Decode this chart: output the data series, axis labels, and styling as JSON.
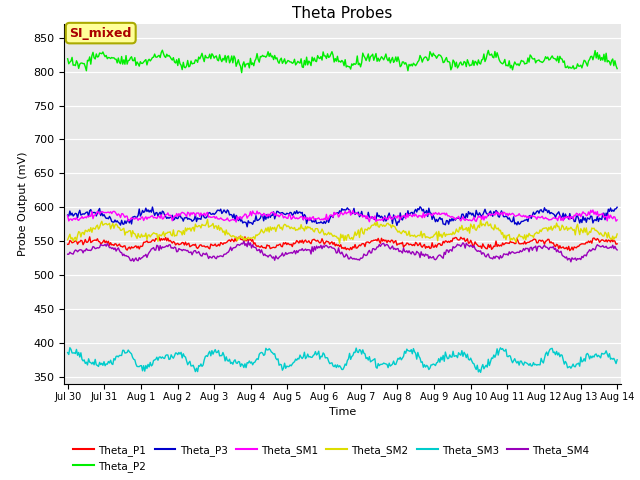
{
  "title": "Theta Probes",
  "ylabel": "Probe Output (mV)",
  "xlabel": "Time",
  "ylim": [
    340,
    870
  ],
  "yticks": [
    350,
    400,
    450,
    500,
    550,
    600,
    650,
    700,
    750,
    800,
    850
  ],
  "background_color": "#e8e8e8",
  "annotation_text": "SI_mixed",
  "annotation_color": "#aa0000",
  "annotation_bg": "#ffff99",
  "annotation_border": "#aaaa00",
  "series": {
    "Theta_P1": {
      "color": "#ff0000",
      "base": 547,
      "amp": 5,
      "trend": -0.3,
      "noise": 2,
      "wave_period": 2.0
    },
    "Theta_P2": {
      "color": "#00ee00",
      "base": 818,
      "amp": 6,
      "trend": -3.3,
      "noise": 4,
      "wave_period": 1.5
    },
    "Theta_P3": {
      "color": "#0000cc",
      "base": 587,
      "amp": 7,
      "trend": 0.2,
      "noise": 3,
      "wave_period": 1.8
    },
    "Theta_SM1": {
      "color": "#ff00ff",
      "base": 587,
      "amp": 4,
      "trend": -0.5,
      "noise": 2,
      "wave_period": 2.2
    },
    "Theta_SM2": {
      "color": "#dddd00",
      "base": 565,
      "amp": 8,
      "trend": -1.0,
      "noise": 3,
      "wave_period": 2.5
    },
    "Theta_SM3": {
      "color": "#00cccc",
      "base": 376,
      "amp": 10,
      "trend": 0.1,
      "noise": 3,
      "wave_period": 1.3
    },
    "Theta_SM4": {
      "color": "#9900bb",
      "base": 535,
      "amp": 8,
      "trend": -0.3,
      "noise": 2,
      "wave_period": 2.0
    }
  },
  "n_points": 500,
  "date_labels": [
    "Jul 30",
    "Jul 31",
    "Aug 1",
    "Aug 2",
    "Aug 3",
    "Aug 4",
    "Aug 5",
    "Aug 6",
    "Aug 7",
    "Aug 8",
    "Aug 9",
    "Aug 10",
    "Aug 11",
    "Aug 12",
    "Aug 13",
    "Aug 14"
  ],
  "linewidth": 1.0,
  "legend_order": [
    "Theta_P1",
    "Theta_P2",
    "Theta_P3",
    "Theta_SM1",
    "Theta_SM2",
    "Theta_SM3",
    "Theta_SM4"
  ]
}
